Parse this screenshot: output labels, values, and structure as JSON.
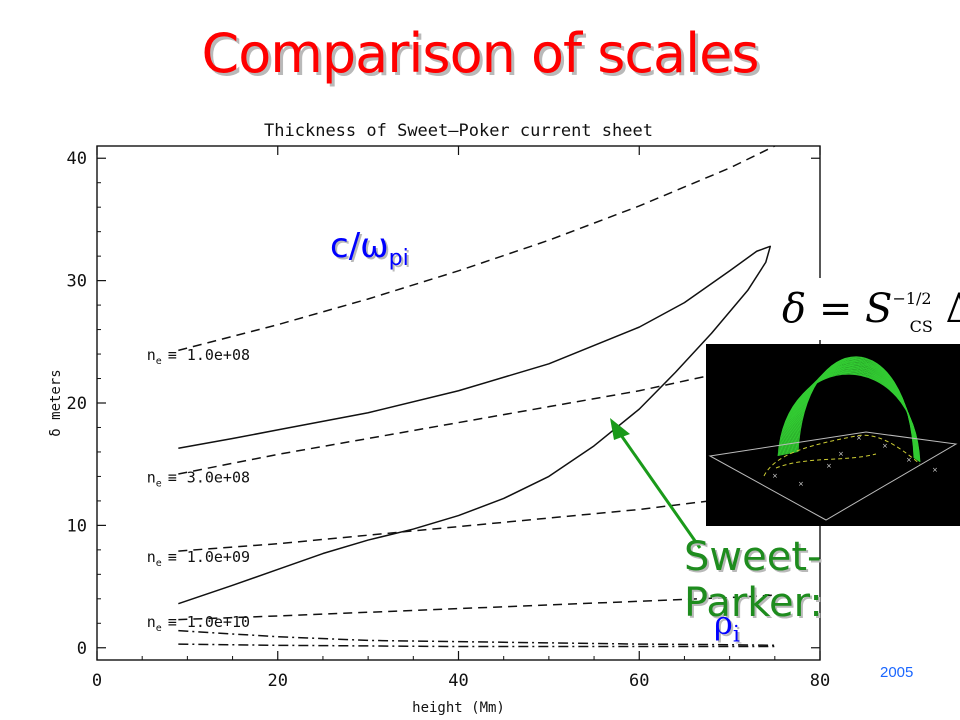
{
  "slide_title": "Comparison of scales",
  "labels": {
    "c_omega_main": "c/ω",
    "c_omega_sub": "pi",
    "rho_main": "ρ",
    "rho_sub": "i",
    "sweet_parker": "Sweet-Parker:",
    "year": "2005"
  },
  "formula": {
    "delta": "δ",
    "equals": "=",
    "S": "S",
    "exponent": "−1/2",
    "subscript": "CS",
    "Delta": "Δ"
  },
  "colors": {
    "title": "#ff0000",
    "label_blue": "#0000ff",
    "sweet_parker_green": "#1e8c1e",
    "arrow_green": "#1a9a1a",
    "inset_background": "#000000",
    "inset_arcs": "#33cc33",
    "inset_field_line": "#cccc33"
  },
  "icons": {
    "arrow": "arrow-up-left-icon"
  },
  "chart_data": {
    "type": "line",
    "title": "Thickness of Sweet–Poker current sheet",
    "xlabel": "height (Mm)",
    "ylabel": "δ meters",
    "xlim": [
      0,
      80
    ],
    "ylim": [
      -1,
      41
    ],
    "xticks": [
      0,
      20,
      40,
      60,
      80
    ],
    "yticks": [
      0,
      10,
      20,
      30,
      40
    ],
    "grid": false,
    "density_labels": [
      {
        "prefix": "n",
        "sub": "e",
        "op": "≡",
        "value": "1.0e+08",
        "y": 24
      },
      {
        "prefix": "n",
        "sub": "e",
        "op": "≡",
        "value": "3.0e+08",
        "y": 14
      },
      {
        "prefix": "n",
        "sub": "e",
        "op": "≡",
        "value": "1.0e+09",
        "y": 7.5
      },
      {
        "prefix": "n",
        "sub": "e",
        "op": "≡",
        "value": "1.0e+10",
        "y": 2.2
      }
    ],
    "series": [
      {
        "style": "dashed",
        "x": [
          9,
          20,
          30,
          40,
          50,
          60,
          70,
          75
        ],
        "y": [
          24.3,
          26.4,
          28.5,
          30.8,
          33.3,
          36.1,
          39.2,
          41.0
        ]
      },
      {
        "style": "dashed",
        "x": [
          9,
          20,
          30,
          40,
          50,
          60,
          70,
          75
        ],
        "y": [
          14.2,
          15.8,
          17.1,
          18.4,
          19.7,
          21.0,
          22.6,
          23.6
        ]
      },
      {
        "style": "dashed",
        "x": [
          9,
          20,
          30,
          40,
          50,
          60,
          70,
          75
        ],
        "y": [
          7.9,
          8.5,
          9.2,
          9.9,
          10.6,
          11.3,
          12.2,
          12.7
        ]
      },
      {
        "style": "dashed",
        "x": [
          9,
          20,
          30,
          40,
          50,
          60,
          70,
          75
        ],
        "y": [
          2.3,
          2.6,
          2.9,
          3.2,
          3.5,
          3.8,
          4.1,
          4.3
        ]
      },
      {
        "style": "dashdot",
        "x": [
          9,
          20,
          30,
          40,
          50,
          60,
          70,
          75
        ],
        "y": [
          1.4,
          0.9,
          0.6,
          0.5,
          0.4,
          0.3,
          0.25,
          0.2
        ]
      },
      {
        "style": "dashdot",
        "x": [
          9,
          20,
          30,
          40,
          50,
          60,
          70,
          75
        ],
        "y": [
          0.3,
          0.2,
          0.15,
          0.1,
          0.1,
          0.1,
          0.1,
          0.1
        ]
      },
      {
        "style": "solid",
        "x": [
          9,
          15,
          20,
          30,
          40,
          50,
          60,
          65,
          70,
          73,
          74.5,
          74,
          72,
          68,
          64,
          60,
          55,
          50,
          45,
          40,
          35,
          30,
          25,
          20,
          15,
          9
        ],
        "y": [
          16.3,
          17.1,
          17.8,
          19.2,
          21.0,
          23.2,
          26.2,
          28.2,
          30.8,
          32.4,
          32.8,
          31.5,
          29.2,
          25.7,
          22.5,
          19.5,
          16.5,
          14.0,
          12.2,
          10.8,
          9.7,
          8.8,
          7.7,
          6.4,
          5.1,
          3.6
        ]
      }
    ]
  }
}
